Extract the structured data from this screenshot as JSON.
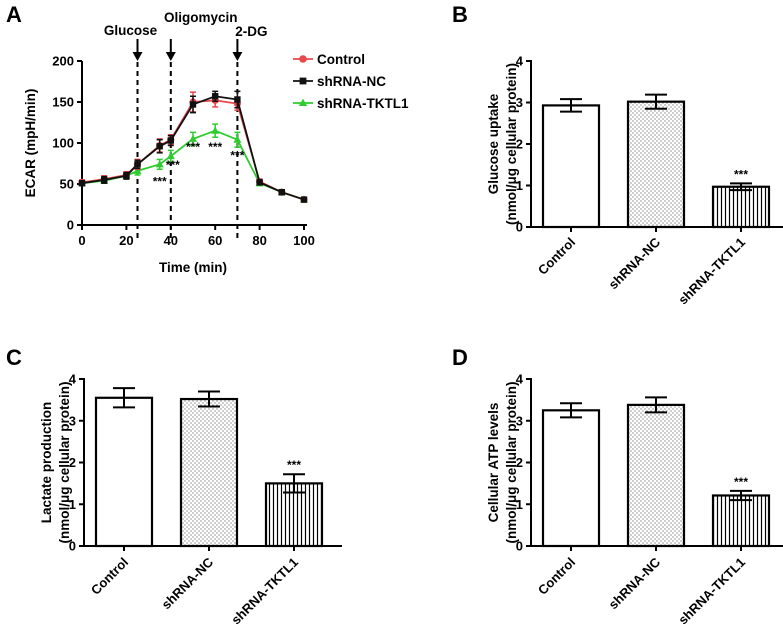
{
  "panel_letters": [
    "A",
    "B",
    "C",
    "D"
  ],
  "chart_data": [
    {
      "id": "A",
      "type": "line",
      "xlabel": "Time (min)",
      "ylabel": "ECAR (mpH/min)",
      "xlim": [
        0,
        100
      ],
      "ylim": [
        0,
        200
      ],
      "xticks": [
        "0",
        "20",
        "40",
        "60",
        "80",
        "100"
      ],
      "yticks": [
        "0",
        "50",
        "100",
        "150",
        "200"
      ],
      "x": [
        0,
        10,
        20,
        25,
        35,
        40,
        50,
        60,
        70,
        80,
        90,
        100
      ],
      "series": [
        {
          "name": "Control",
          "color": "#e8474b",
          "marker": "circle",
          "values": [
            52,
            56,
            61,
            74,
            97,
            104,
            150,
            152,
            148,
            53,
            40,
            31
          ],
          "errors": [
            3,
            4,
            4,
            6,
            8,
            6,
            12,
            8,
            8,
            3,
            3,
            2
          ]
        },
        {
          "name": "shRNA-NC",
          "color": "#111111",
          "marker": "square",
          "values": [
            51,
            55,
            60,
            74,
            96,
            103,
            147,
            157,
            153,
            52,
            40,
            31
          ],
          "errors": [
            3,
            4,
            4,
            5,
            8,
            6,
            10,
            6,
            10,
            3,
            3,
            2
          ]
        },
        {
          "name": "shRNA-TKTL1",
          "color": "#2ecc2e",
          "marker": "triangle",
          "values": [
            51,
            54,
            60,
            66,
            74,
            84,
            105,
            115,
            104,
            51,
            40,
            31
          ],
          "errors": [
            3,
            3,
            4,
            5,
            6,
            7,
            8,
            8,
            9,
            3,
            3,
            2
          ]
        }
      ],
      "injections": [
        {
          "label": "Glucose",
          "x": 25
        },
        {
          "label": "Oligomycin",
          "x": 40
        },
        {
          "label": "2-DG",
          "x": 70
        }
      ],
      "significance": [
        {
          "x": 35,
          "label": "***",
          "y": 48
        },
        {
          "x": 40,
          "label": "***",
          "y": 68
        },
        {
          "x": 50,
          "label": "***",
          "y": 90
        },
        {
          "x": 60,
          "label": "***",
          "y": 90
        },
        {
          "x": 70,
          "label": "***",
          "y": 80
        }
      ],
      "legend": "top-right"
    },
    {
      "id": "B",
      "type": "bar",
      "ylabel_lines": [
        "Glucose uptake",
        "(nmol/μg cellular protein)"
      ],
      "categories": [
        "Control",
        "shRNA-NC",
        "shRNA-TKTL1"
      ],
      "values": [
        2.93,
        3.02,
        0.97
      ],
      "errors": [
        0.15,
        0.17,
        0.08
      ],
      "fills": [
        "plain",
        "dots",
        "vlines"
      ],
      "ylim": [
        0,
        4
      ],
      "yticks": [
        "0",
        "1",
        "2",
        "3",
        "4"
      ],
      "significance": [
        "",
        "",
        "***"
      ]
    },
    {
      "id": "C",
      "type": "bar",
      "ylabel_lines": [
        "Lactate production",
        "(nmol/μg cellular protein)"
      ],
      "categories": [
        "Control",
        "shRNA-NC",
        "shRNA-TKTL1"
      ],
      "values": [
        3.55,
        3.52,
        1.5
      ],
      "errors": [
        0.23,
        0.18,
        0.22
      ],
      "fills": [
        "plain",
        "dots",
        "vlines"
      ],
      "ylim": [
        0,
        4
      ],
      "yticks": [
        "0",
        "1",
        "2",
        "3",
        "4"
      ],
      "significance": [
        "",
        "",
        "***"
      ]
    },
    {
      "id": "D",
      "type": "bar",
      "ylabel_lines": [
        "Cellular ATP levels",
        "(nmol/μg cellular protein)"
      ],
      "categories": [
        "Control",
        "shRNA-NC",
        "shRNA-TKTL1"
      ],
      "values": [
        3.25,
        3.38,
        1.21
      ],
      "errors": [
        0.17,
        0.18,
        0.11
      ],
      "fills": [
        "plain",
        "dots",
        "vlines"
      ],
      "ylim": [
        0,
        4
      ],
      "yticks": [
        "0",
        "1",
        "2",
        "3",
        "4"
      ],
      "significance": [
        "",
        "",
        "***"
      ]
    }
  ]
}
